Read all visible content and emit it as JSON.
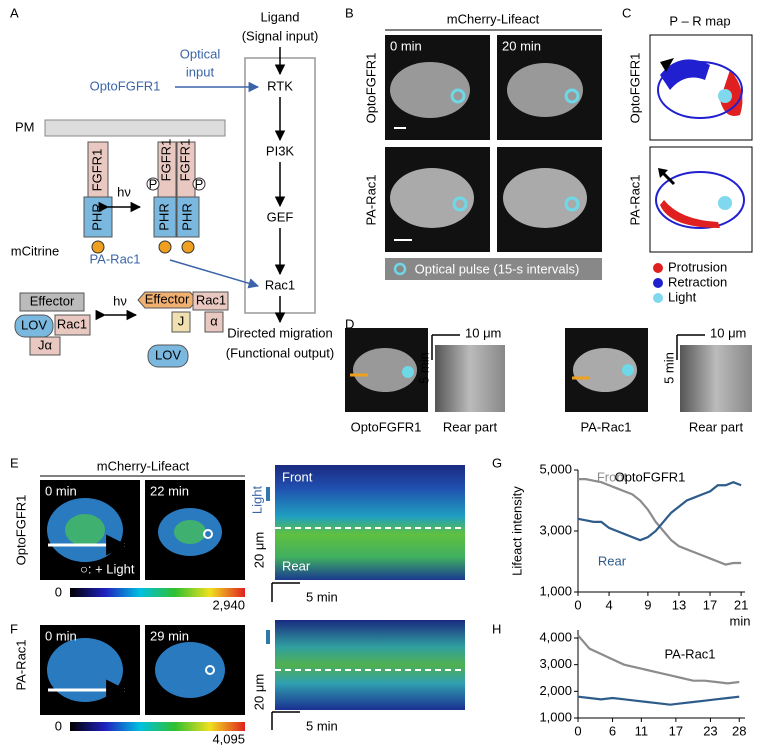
{
  "panel_labels": [
    "A",
    "B",
    "C",
    "D",
    "E",
    "F",
    "G",
    "H"
  ],
  "panel_a": {
    "ligand": "Ligand",
    "signal_input": "(Signal input)",
    "pathway": [
      "RTK",
      "PI3K",
      "GEF",
      "Rac1"
    ],
    "output": "Directed migration",
    "functional_output": "(Functional output)",
    "optical": "Optical",
    "input": "input",
    "opto_fgfr1": "OptoFGFR1",
    "pm": "PM",
    "fgfr1": "FGFR1",
    "phr": "PHR",
    "p": "P",
    "hv": "hν",
    "mcitrine": "mCitrine",
    "pa_rac1": "PA-Rac1",
    "effector": "Effector",
    "lov": "LOV",
    "rac1": "Rac1",
    "ja": "Jα",
    "j": "J",
    "alpha": "α"
  },
  "panel_b": {
    "title": "mCherry-Lifeact",
    "rows": [
      "OptoFGFR1",
      "PA-Rac1"
    ],
    "times": [
      "0 min",
      "20 min"
    ],
    "pulse": "Optical pulse (15-s intervals)"
  },
  "panel_c": {
    "title": "P – R map",
    "rows": [
      "OptoFGFR1",
      "PA-Rac1"
    ],
    "legend": [
      "Protrusion",
      "Retraction",
      "Light"
    ]
  },
  "panel_d": {
    "scale_x": "10 μm",
    "scale_t": "5 min",
    "labels": [
      "OptoFGFR1",
      "Rear part",
      "PA-Rac1",
      "Rear part"
    ]
  },
  "panel_e": {
    "title": "mCherry-Lifeact",
    "row": "OptoFGFR1",
    "times": [
      "0 min",
      "22 min"
    ],
    "light_key": "○: + Light",
    "cbar": [
      "0",
      "2,940"
    ],
    "front": "Front",
    "rear": "Rear",
    "light": "Light",
    "scale_x": "20 μm",
    "scale_t": "5 min"
  },
  "panel_f": {
    "row": "PA-Rac1",
    "times": [
      "0 min",
      "29 min"
    ],
    "cbar": [
      "0",
      "4,095"
    ],
    "scale_x": "20 μm",
    "scale_t": "5 min"
  },
  "chart_data": [
    {
      "type": "line",
      "title": "OptoFGFR1",
      "ylabel": "Lifeact intensity",
      "xlabel": "min",
      "x": [
        0,
        1,
        2,
        3,
        4,
        5,
        6,
        7,
        8,
        9,
        10,
        11,
        12,
        13,
        14,
        15,
        16,
        17,
        18,
        19,
        20,
        21
      ],
      "xlim": [
        0,
        21.5
      ],
      "xticks": [
        0,
        4,
        9,
        13,
        17,
        21
      ],
      "ylim": [
        1000,
        5000
      ],
      "yticks": [
        {
          "value": 1000,
          "label": "1,000"
        },
        {
          "value": 3000,
          "label": "3,000"
        },
        {
          "value": 5000,
          "label": "5,000"
        }
      ],
      "series": [
        {
          "name": "Front",
          "color": "#8c8c8c",
          "values": [
            4700,
            4700,
            4650,
            4600,
            4500,
            4400,
            4300,
            4200,
            4000,
            3700,
            3300,
            3000,
            2700,
            2500,
            2400,
            2300,
            2200,
            2100,
            2000,
            1900,
            1950,
            1950
          ]
        },
        {
          "name": "Rear",
          "color": "#2e5c8a",
          "values": [
            3400,
            3350,
            3300,
            3300,
            3100,
            3000,
            2900,
            2800,
            2700,
            2800,
            3000,
            3300,
            3600,
            3800,
            4000,
            4100,
            4200,
            4300,
            4500,
            4500,
            4600,
            4500
          ]
        }
      ]
    },
    {
      "type": "line",
      "title": "PA-Rac1",
      "x": [
        0,
        2,
        4,
        6,
        8,
        10,
        12,
        14,
        16,
        18,
        20,
        22,
        24,
        26,
        28
      ],
      "xlim": [
        0,
        29
      ],
      "xticks": [
        0,
        6,
        11,
        17,
        23,
        28
      ],
      "ylim": [
        1000,
        4300
      ],
      "yticks": [
        {
          "value": 1000,
          "label": "1,000"
        },
        {
          "value": 2000,
          "label": "2,000"
        },
        {
          "value": 3000,
          "label": "3,000"
        },
        {
          "value": 4000,
          "label": "4,000"
        }
      ],
      "series": [
        {
          "color": "#8c8c8c",
          "values": [
            4100,
            3600,
            3400,
            3200,
            3000,
            2900,
            2800,
            2700,
            2600,
            2500,
            2400,
            2400,
            2350,
            2300,
            2350
          ]
        },
        {
          "color": "#2e5c8a",
          "values": [
            1800,
            1750,
            1700,
            1750,
            1700,
            1650,
            1600,
            1550,
            1500,
            1550,
            1600,
            1650,
            1700,
            1750,
            1800
          ]
        }
      ]
    }
  ]
}
